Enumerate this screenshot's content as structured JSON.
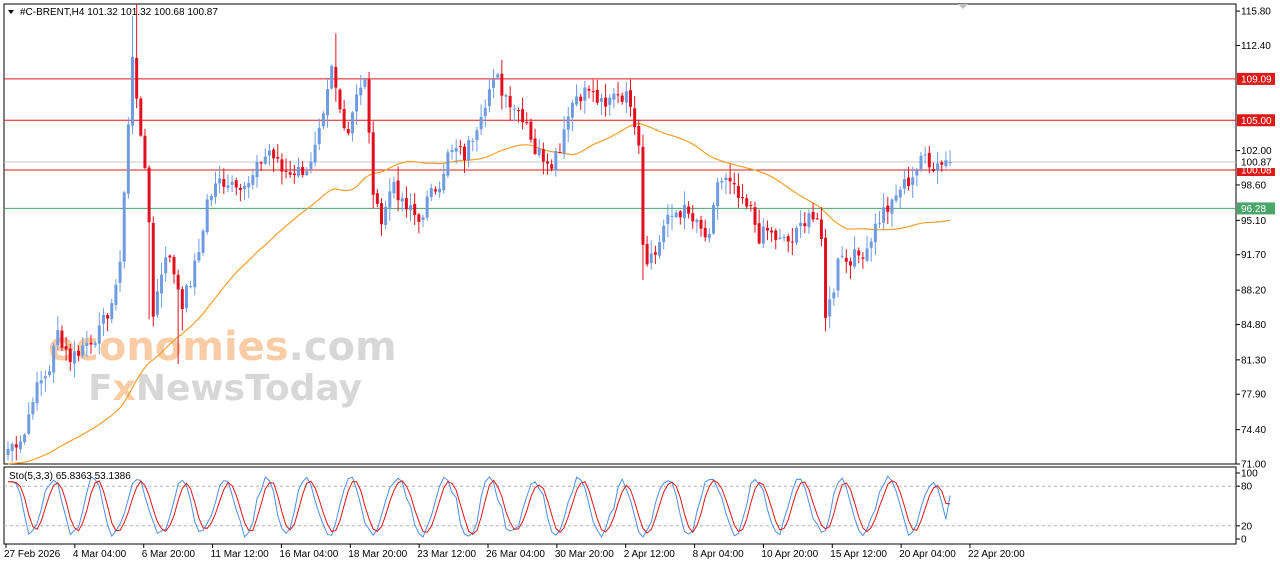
{
  "header": {
    "symbol_text": "#C-BRENT,H4  101.32 101.32 100.68 100.87",
    "menu_icon": "triangle-down-icon"
  },
  "watermark": {
    "line1_part1": "economies",
    "line1_part2": ".com",
    "line2_part1": "F",
    "line2_part2": "x",
    "line2_part3": "NewsToday"
  },
  "colors": {
    "bull": "#6f9be0",
    "bear": "#e2101e",
    "ma": "#f0a030",
    "resistance": "#e01818",
    "support": "#4aa56a",
    "grid_line": "#c8c8c8",
    "stoch_main": "#4f8fe8",
    "stoch_signal": "#e01818"
  },
  "chart_data": [
    {
      "type": "candlestick",
      "title": "#C-BRENT,H4",
      "ohlc_readout": {
        "open": 101.32,
        "high": 101.32,
        "low": 100.68,
        "close": 100.87
      },
      "ylim": [
        71.0,
        116.5
      ],
      "y_ticks": [
        "115.80",
        "112.40",
        "109.09",
        "105.00",
        "102.00",
        "100.87",
        "100.08",
        "98.60",
        "96.28",
        "95.10",
        "91.70",
        "88.20",
        "84.80",
        "81.30",
        "77.90",
        "74.40",
        "71.00"
      ],
      "x_tick_labels": [
        "27 Feb 2026",
        "4 Mar 04:00",
        "6 Mar 20:00",
        "11 Mar 12:00",
        "16 Mar 04:00",
        "18 Mar 20:00",
        "23 Mar 12:00",
        "26 Mar 04:00",
        "30 Mar 20:00",
        "2 Apr 12:00",
        "8 Apr 04:00",
        "10 Apr 20:00",
        "15 Apr 12:00",
        "20 Apr 04:00",
        "22 Apr 20:00"
      ],
      "anchors": [
        [
          0,
          72.5
        ],
        [
          4,
          74
        ],
        [
          6,
          77.8
        ],
        [
          10,
          80.5
        ],
        [
          12,
          84
        ],
        [
          15,
          81.5
        ],
        [
          19,
          83
        ],
        [
          22,
          84
        ],
        [
          26,
          88
        ],
        [
          27,
          91.5
        ],
        [
          30,
          111
        ],
        [
          32,
          104
        ],
        [
          34,
          95
        ],
        [
          35,
          86
        ],
        [
          38,
          92
        ],
        [
          40,
          90
        ],
        [
          42,
          87
        ],
        [
          44,
          89
        ],
        [
          46,
          92
        ],
        [
          48,
          97
        ],
        [
          51,
          99
        ],
        [
          55,
          99
        ],
        [
          58,
          98.5
        ],
        [
          61,
          101
        ],
        [
          63,
          102
        ],
        [
          66,
          100
        ],
        [
          70,
          100
        ],
        [
          73,
          100.5
        ],
        [
          76,
          105
        ],
        [
          78,
          110
        ],
        [
          80,
          106
        ],
        [
          82,
          104
        ],
        [
          84,
          108
        ],
        [
          86,
          108.8
        ],
        [
          88,
          98
        ],
        [
          89,
          96
        ],
        [
          90,
          95.5
        ],
        [
          93,
          99
        ],
        [
          95,
          96.5
        ],
        [
          97,
          96
        ],
        [
          99,
          95
        ],
        [
          101,
          97
        ],
        [
          104,
          99
        ],
        [
          106,
          101.5
        ],
        [
          108,
          102
        ],
        [
          110,
          101.5
        ],
        [
          112,
          103.5
        ],
        [
          114,
          106
        ],
        [
          116,
          108
        ],
        [
          118,
          109
        ],
        [
          119,
          108
        ],
        [
          121,
          107
        ],
        [
          123,
          106
        ],
        [
          125,
          105
        ],
        [
          127,
          102
        ],
        [
          129,
          101.5
        ],
        [
          131,
          101
        ],
        [
          133,
          102.5
        ],
        [
          135,
          106
        ],
        [
          137,
          107.5
        ],
        [
          140,
          108
        ],
        [
          142,
          107
        ],
        [
          144,
          106
        ],
        [
          146,
          108
        ],
        [
          148,
          107.5
        ],
        [
          150,
          107
        ],
        [
          152,
          103
        ],
        [
          153,
          93
        ],
        [
          154,
          91.5
        ],
        [
          156,
          91.8
        ],
        [
          158,
          94.5
        ],
        [
          161,
          96
        ],
        [
          163,
          96
        ],
        [
          165,
          95
        ],
        [
          167,
          94
        ],
        [
          169,
          93
        ],
        [
          171,
          99
        ],
        [
          173,
          99
        ],
        [
          175,
          98
        ],
        [
          177,
          96.5
        ],
        [
          179,
          96
        ],
        [
          181,
          93.5
        ],
        [
          183,
          94
        ],
        [
          186,
          93
        ],
        [
          189,
          93
        ],
        [
          191,
          94.5
        ],
        [
          193,
          96
        ],
        [
          195,
          94.5
        ],
        [
          196,
          93
        ],
        [
          197,
          86
        ],
        [
          198,
          87
        ],
        [
          199,
          88.5
        ],
        [
          200,
          91.8
        ],
        [
          202,
          91.3
        ],
        [
          205,
          91.6
        ],
        [
          207,
          92.5
        ],
        [
          209,
          94.5
        ],
        [
          211,
          96
        ],
        [
          213,
          96.5
        ],
        [
          215,
          98.3
        ],
        [
          217,
          99
        ],
        [
          219,
          100.2
        ],
        [
          221,
          101.5
        ],
        [
          223,
          100.5
        ],
        [
          225,
          101
        ],
        [
          226,
          101.2
        ],
        [
          227,
          100.87
        ]
      ],
      "moving_average": {
        "period": 50,
        "label": "MA"
      }
    },
    {
      "type": "line",
      "indicator_text": "Sto(5,3,3) 65.8363 53.1386",
      "main_value": 65.8363,
      "signal_value": 53.1386,
      "ylim": [
        0,
        100
      ],
      "levels": [
        20,
        80
      ],
      "y_ticks": [
        "100",
        "80",
        "20",
        "0"
      ]
    }
  ],
  "price_levels": [
    {
      "value": 109.09,
      "label": "109.09",
      "kind": "resistance"
    },
    {
      "value": 105.0,
      "label": "105.00",
      "kind": "resistance"
    },
    {
      "value": 100.08,
      "label": "100.08",
      "kind": "resistance"
    },
    {
      "value": 96.28,
      "label": "96.28",
      "kind": "support"
    }
  ],
  "current_price": {
    "value": 100.87,
    "label": "100.87"
  }
}
